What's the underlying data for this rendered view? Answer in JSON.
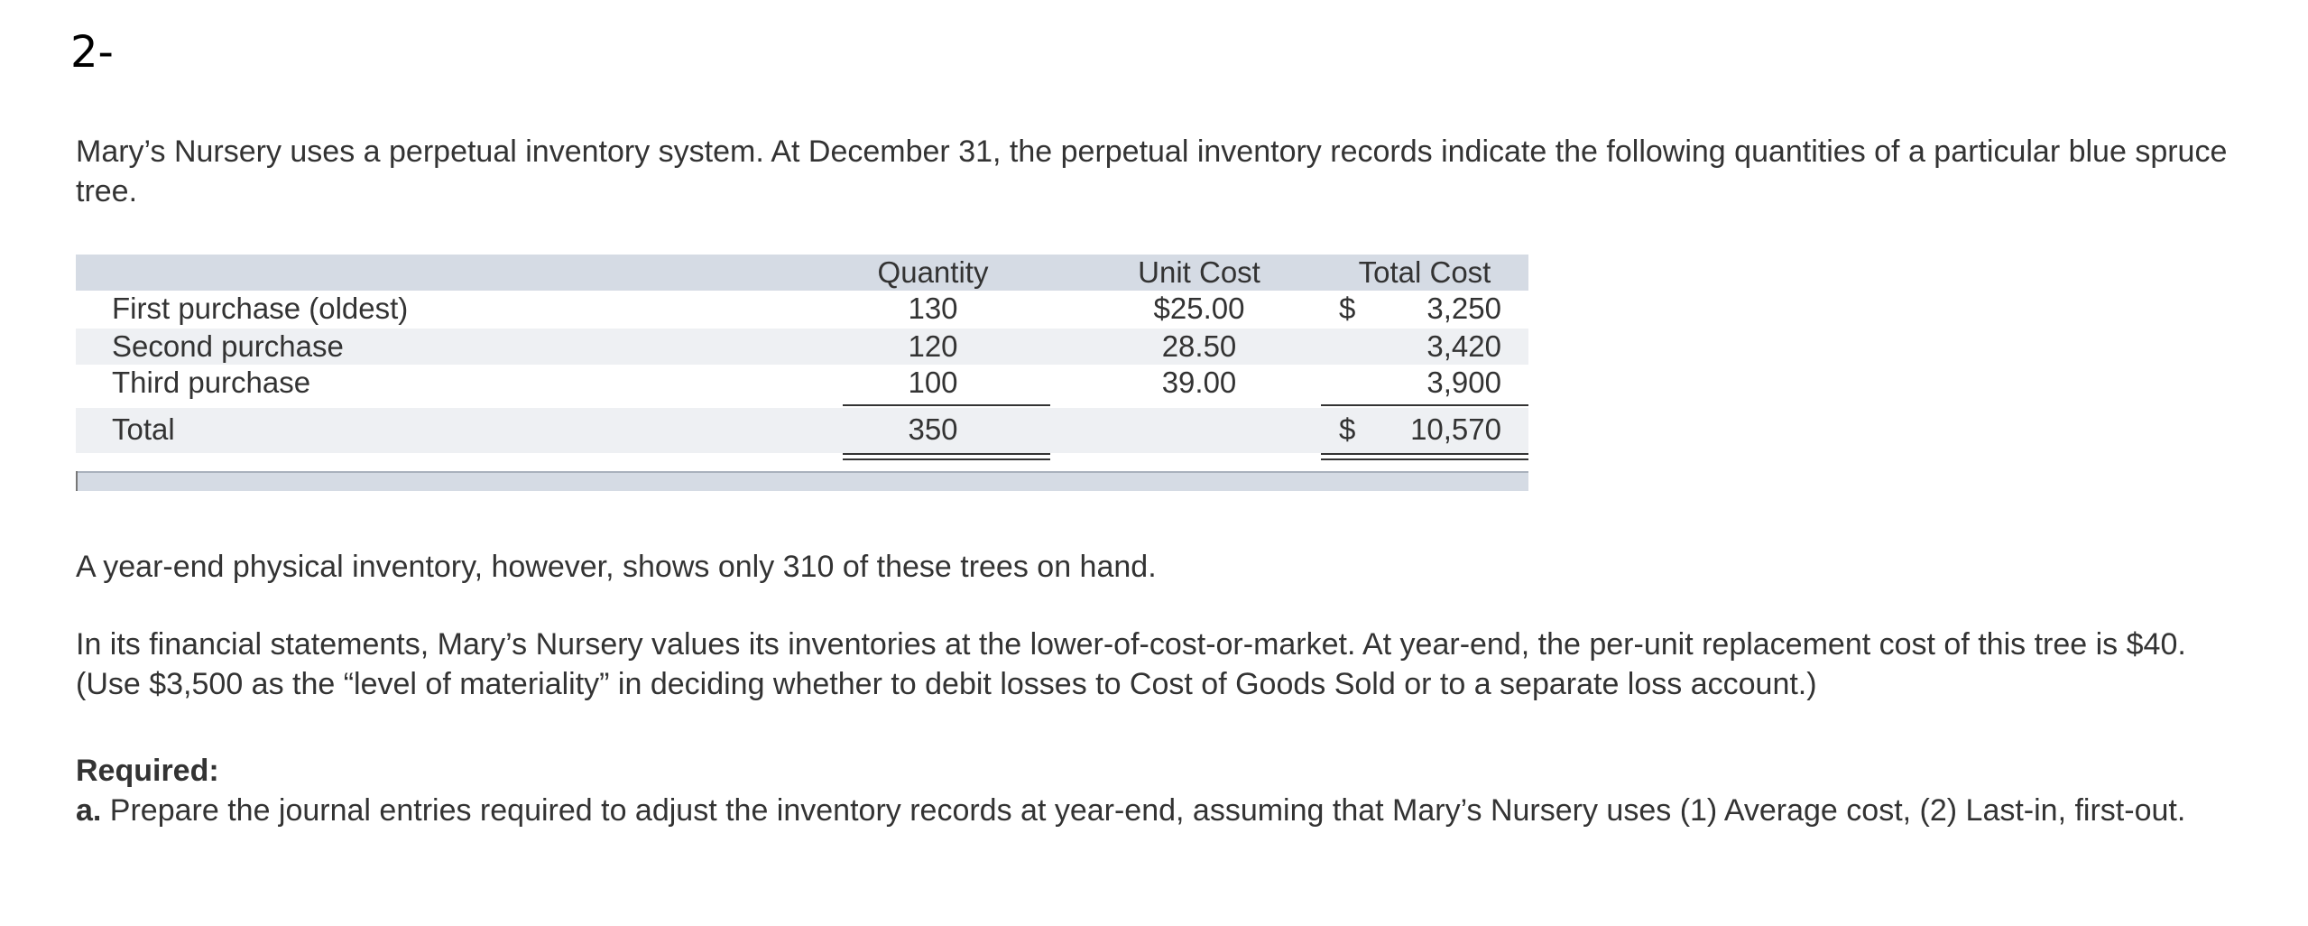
{
  "heading": "2-",
  "intro": "Mary’s Nursery uses a perpetual inventory system. At December 31, the perpetual inventory records indicate the following quantities of a particular blue spruce tree.",
  "table": {
    "headers": {
      "quantity": "Quantity",
      "unit_cost": "Unit Cost",
      "total_cost": "Total Cost"
    },
    "rows": [
      {
        "label": "First purchase (oldest)",
        "quantity": "130",
        "unit_cost": "$25.00",
        "total_symbol": "$",
        "total": "3,250"
      },
      {
        "label": "Second purchase",
        "quantity": "120",
        "unit_cost": "28.50",
        "total_symbol": "",
        "total": "3,420"
      },
      {
        "label": "Third purchase",
        "quantity": "100",
        "unit_cost": "39.00",
        "total_symbol": "",
        "total": "3,900"
      }
    ],
    "total_row": {
      "label": "Total",
      "quantity": "350",
      "total_symbol": "$",
      "total": "10,570"
    }
  },
  "physical_count": "A year-end physical inventory, however, shows only 310 of these trees on hand.",
  "lcm_text": "In its financial statements, Mary’s Nursery values its inventories at the lower-of-cost-or-market. At year-end, the per-unit replacement cost of this tree is $40. (Use $3,500 as the “level of materiality” in deciding whether to debit losses to Cost of Goods Sold or to a separate loss account.)",
  "required": {
    "title": "Required:",
    "part_label": "a.",
    "part_text": " Prepare the journal entries required to adjust the inventory records at year-end, assuming that Mary’s Nursery uses (1) Average cost, (2) Last-in, first-out."
  }
}
